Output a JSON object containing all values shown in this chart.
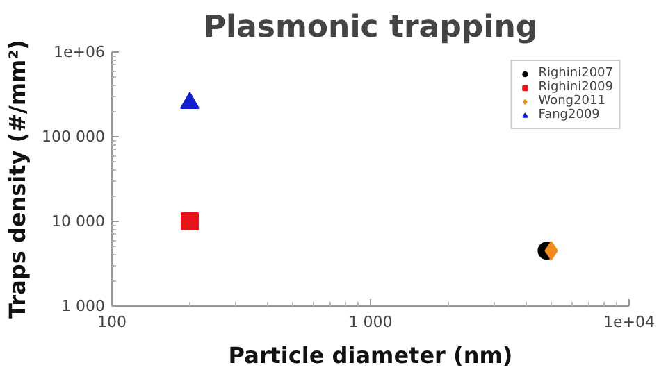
{
  "chart_data": {
    "type": "scatter",
    "title": "Plasmonic trapping",
    "xlabel": "Particle diameter (nm)",
    "ylabel": "Traps density (#/mm²)",
    "log": "xy",
    "xlim": [
      100,
      10000
    ],
    "ylim": [
      1000,
      1000000
    ],
    "xticks": [
      {
        "value": 100,
        "label": "100"
      },
      {
        "value": 1000,
        "label": "1 000"
      },
      {
        "value": 10000,
        "label": "1e+04"
      }
    ],
    "yticks": [
      {
        "value": 1000,
        "label": "1 000"
      },
      {
        "value": 10000,
        "label": "10 000"
      },
      {
        "value": 100000,
        "label": "100 000"
      },
      {
        "value": 1000000,
        "label": "1e+06"
      }
    ],
    "grid": false,
    "legend": "top right",
    "series": [
      {
        "name": "Righini2007",
        "color": "#000000",
        "marker": "circle",
        "x": [
          4800
        ],
        "values": [
          4500
        ]
      },
      {
        "name": "Righini2009",
        "color": "#e8141a",
        "marker": "square",
        "x": [
          200
        ],
        "values": [
          10000
        ]
      },
      {
        "name": "Wong2011",
        "color": "#f28a1e",
        "marker": "diamond",
        "x": [
          5000
        ],
        "values": [
          4500
        ]
      },
      {
        "name": "Fang2009",
        "color": "#1020d0",
        "marker": "triangle",
        "x": [
          200
        ],
        "values": [
          250000
        ]
      }
    ]
  }
}
